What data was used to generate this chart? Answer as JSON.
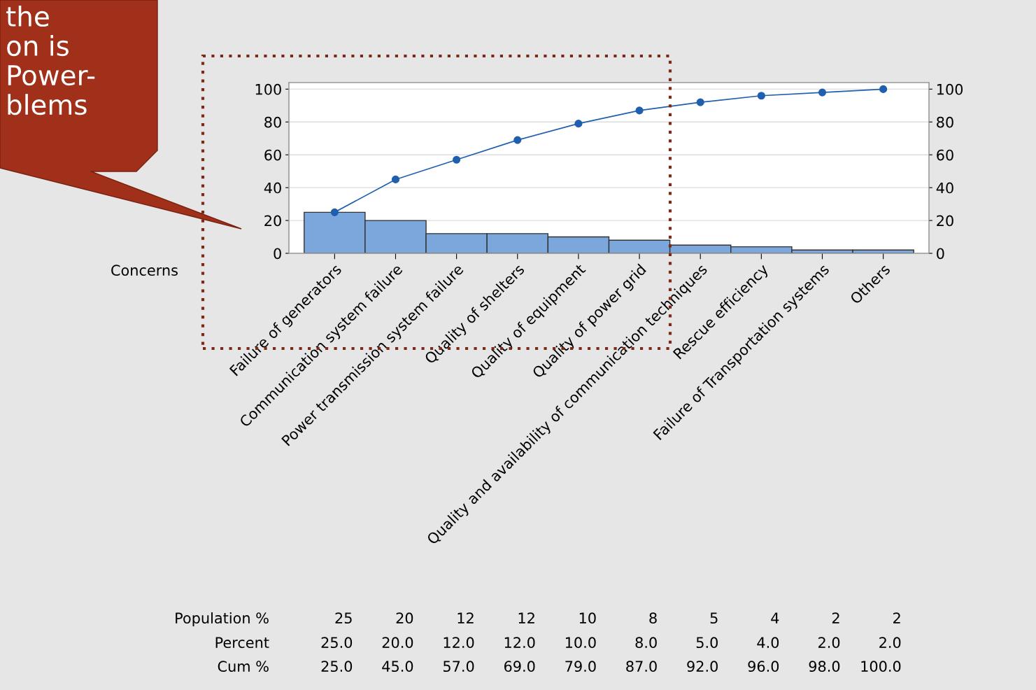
{
  "chart_data": {
    "type": "bar",
    "xlabel": "Concerns",
    "categories": [
      "Failure of generators",
      "Communication system failure",
      "Power transmission system failure",
      "Quality of shelters",
      "Quality of equipment",
      "Quality of power grid",
      "Quality and availability of communication techniques",
      "Rescue efficiency",
      "Failure of Transportation systems",
      "Others"
    ],
    "series": [
      {
        "color": "#7ba7dc",
        "values": [
          25,
          20,
          12,
          12,
          10,
          8,
          5,
          4,
          2,
          2
        ],
        "value_labels": [
          "25.0",
          "20.0",
          "12.0",
          "12.0",
          "10.0",
          "8.0",
          "5.0",
          "4.0",
          "2.0",
          "2.0"
        ]
      },
      {
        "type": "line",
        "color": "#1f5fae",
        "marker": "circle",
        "values": [
          25,
          45,
          57,
          69,
          79,
          87,
          92,
          96,
          98,
          100
        ],
        "value_labels": [
          "25.0",
          "45.0",
          "57.0",
          "69.0",
          "79.0",
          "87.0",
          "92.0",
          "96.0",
          "98.0",
          "100.0"
        ]
      }
    ],
    "ylim": [
      0,
      104
    ],
    "yticks": [
      0,
      20,
      40,
      60,
      80,
      100
    ],
    "y2lim": [
      0,
      104
    ],
    "y2ticks": [
      0,
      20,
      40,
      60,
      80,
      100
    ],
    "grid": "y",
    "annotations": [
      "the\non is\nPower-\nblems",
      "Population %",
      "Percent",
      "Cum %",
      "25",
      "20",
      "12",
      "12",
      "10",
      "8",
      "5",
      "4",
      "2",
      "2"
    ]
  }
}
